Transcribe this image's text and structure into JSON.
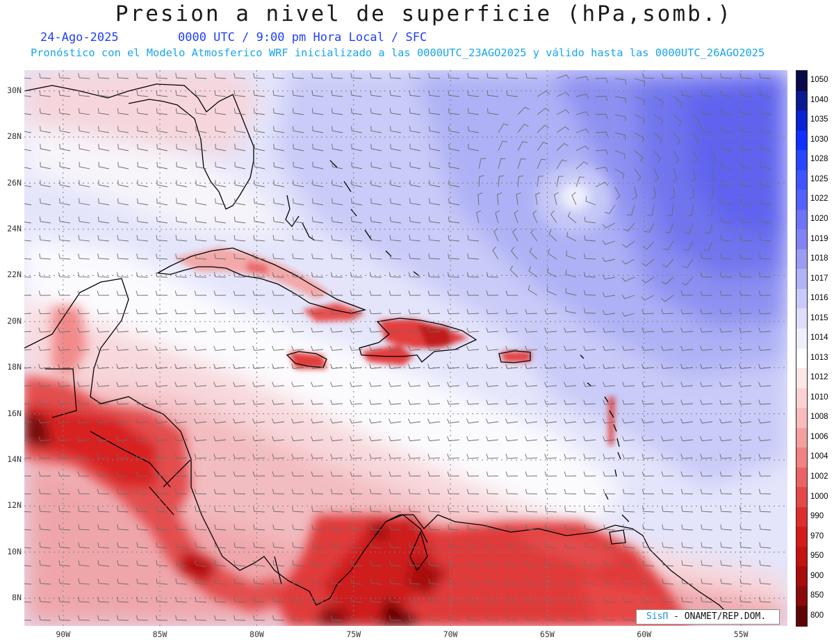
{
  "header": {
    "title": "Presion a nivel de superficie (hPa,somb.)",
    "date": "24-Ago-2025",
    "valid_time": "0000 UTC / 9:00 pm Hora Local / SFC",
    "subtitle": "Pronóstico con el Modelo Atmosferico WRF inicializado a las 0000UTC_23AGO2025 y válido hasta las  0000UTC_26AGO2025"
  },
  "map": {
    "lat_labels": [
      "30N",
      "28N",
      "26N",
      "24N",
      "22N",
      "20N",
      "18N",
      "16N",
      "14N",
      "12N",
      "10N",
      "8N"
    ],
    "lon_labels": [
      "90W",
      "85W",
      "80W",
      "75W",
      "70W",
      "65W",
      "60W",
      "55W"
    ],
    "extent": {
      "lon": [
        -92,
        -52.6
      ],
      "lat": [
        6.8,
        30.9
      ]
    },
    "field": "sea-level pressure (hPa), shaded; wind barbs",
    "low_center": {
      "lon": -62.3,
      "lat": 25.5
    },
    "high_pressure_region": "northeast Atlantic (1019-1020 hPa)",
    "low_pressure_region": "Central America, Colombia, Venezuela interior"
  },
  "colorbar": {
    "labels": [
      "1050",
      "1040",
      "1035",
      "1030",
      "1028",
      "1025",
      "1022",
      "1020",
      "1019",
      "1018",
      "1017",
      "1016",
      "1015",
      "1014",
      "1013",
      "1012",
      "1010",
      "1008",
      "1006",
      "1004",
      "1002",
      "1000",
      "990",
      "970",
      "950",
      "900",
      "850",
      "800"
    ],
    "colors": [
      "#0a0a4a",
      "#0b1a8f",
      "#0a22d0",
      "#1030ff",
      "#2a45ff",
      "#3e55ff",
      "#5262ff",
      "#6d74f5",
      "#8183f3",
      "#9a9cf4",
      "#b1b3f7",
      "#c8caf9",
      "#dcdefb",
      "#eeeffd",
      "#ffffff",
      "#fde6e6",
      "#fbd2d2",
      "#f8bcbc",
      "#f5a0a0",
      "#f08282",
      "#ea6464",
      "#e44848",
      "#dd2e2e",
      "#d41b1b",
      "#c41212",
      "#a80c0c",
      "#8a0a0a",
      "#5e0606"
    ]
  },
  "watermark": {
    "brand": "SisΠ",
    "credit": "- ONAMET/REP.DOM."
  }
}
